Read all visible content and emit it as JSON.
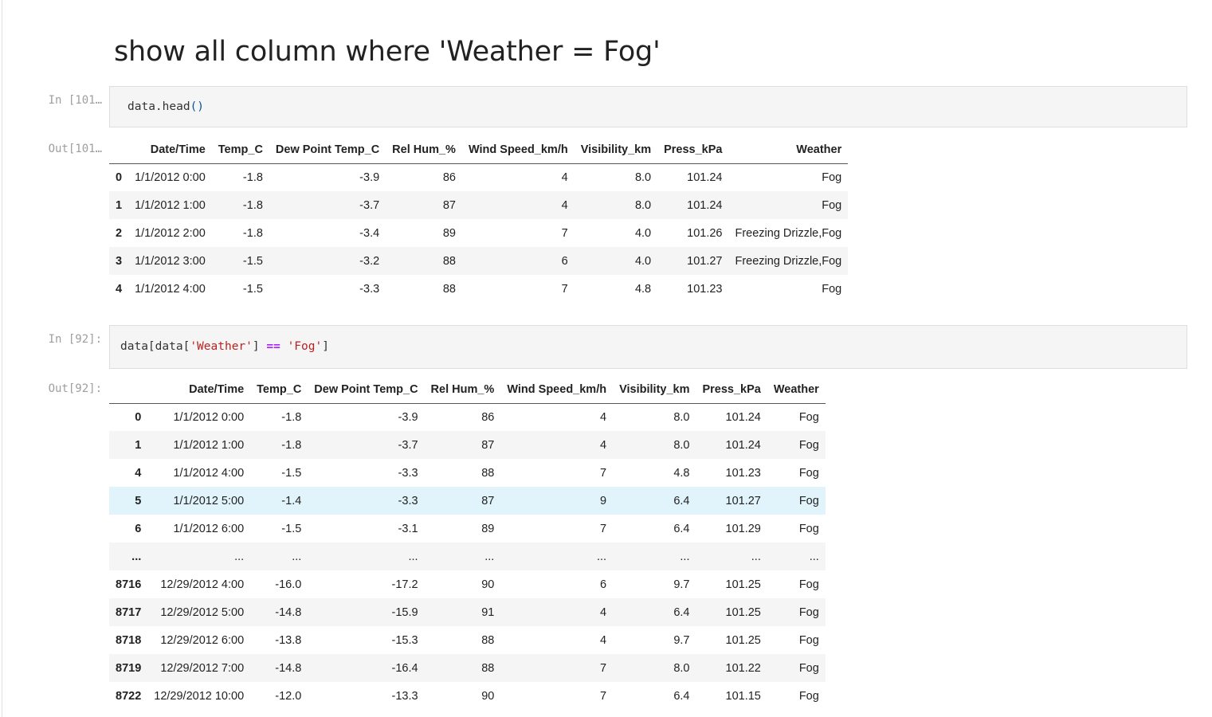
{
  "heading": "show all column where 'Weather = Fog'",
  "cell1": {
    "in_prompt": "In [101…",
    "out_prompt": "Out[101…",
    "code": {
      "obj": "data",
      "method": ".head",
      "args": "()"
    },
    "table": {
      "columns": [
        "",
        "Date/Time",
        "Temp_C",
        "Dew Point Temp_C",
        "Rel Hum_%",
        "Wind Speed_km/h",
        "Visibility_km",
        "Press_kPa",
        "Weather"
      ],
      "rows": [
        [
          "0",
          "1/1/2012 0:00",
          "-1.8",
          "-3.9",
          "86",
          "4",
          "8.0",
          "101.24",
          "Fog"
        ],
        [
          "1",
          "1/1/2012 1:00",
          "-1.8",
          "-3.7",
          "87",
          "4",
          "8.0",
          "101.24",
          "Fog"
        ],
        [
          "2",
          "1/1/2012 2:00",
          "-1.8",
          "-3.4",
          "89",
          "7",
          "4.0",
          "101.26",
          "Freezing Drizzle,Fog"
        ],
        [
          "3",
          "1/1/2012 3:00",
          "-1.5",
          "-3.2",
          "88",
          "6",
          "4.0",
          "101.27",
          "Freezing Drizzle,Fog"
        ],
        [
          "4",
          "1/1/2012 4:00",
          "-1.5",
          "-3.3",
          "88",
          "7",
          "4.8",
          "101.23",
          "Fog"
        ]
      ]
    }
  },
  "cell2": {
    "in_prompt": "In [92]:",
    "out_prompt": "Out[92]:",
    "code": {
      "p1": "data[data[",
      "s1": "'Weather'",
      "p2": "] ",
      "op": "==",
      "sp": " ",
      "s2": "'Fog'",
      "p3": "]"
    },
    "table": {
      "columns": [
        "",
        "Date/Time",
        "Temp_C",
        "Dew Point Temp_C",
        "Rel Hum_%",
        "Wind Speed_km/h",
        "Visibility_km",
        "Press_kPa",
        "Weather"
      ],
      "rows": [
        [
          "0",
          "1/1/2012 0:00",
          "-1.8",
          "-3.9",
          "86",
          "4",
          "8.0",
          "101.24",
          "Fog"
        ],
        [
          "1",
          "1/1/2012 1:00",
          "-1.8",
          "-3.7",
          "87",
          "4",
          "8.0",
          "101.24",
          "Fog"
        ],
        [
          "4",
          "1/1/2012 4:00",
          "-1.5",
          "-3.3",
          "88",
          "7",
          "4.8",
          "101.23",
          "Fog"
        ],
        [
          "5",
          "1/1/2012 5:00",
          "-1.4",
          "-3.3",
          "87",
          "9",
          "6.4",
          "101.27",
          "Fog"
        ],
        [
          "6",
          "1/1/2012 6:00",
          "-1.5",
          "-3.1",
          "89",
          "7",
          "6.4",
          "101.29",
          "Fog"
        ],
        [
          "...",
          "...",
          "...",
          "...",
          "...",
          "...",
          "...",
          "...",
          "..."
        ],
        [
          "8716",
          "12/29/2012 4:00",
          "-16.0",
          "-17.2",
          "90",
          "6",
          "9.7",
          "101.25",
          "Fog"
        ],
        [
          "8717",
          "12/29/2012 5:00",
          "-14.8",
          "-15.9",
          "91",
          "4",
          "6.4",
          "101.25",
          "Fog"
        ],
        [
          "8718",
          "12/29/2012 6:00",
          "-13.8",
          "-15.3",
          "88",
          "4",
          "9.7",
          "101.25",
          "Fog"
        ],
        [
          "8719",
          "12/29/2012 7:00",
          "-14.8",
          "-16.4",
          "88",
          "7",
          "8.0",
          "101.22",
          "Fog"
        ],
        [
          "8722",
          "12/29/2012 10:00",
          "-12.0",
          "-13.3",
          "90",
          "7",
          "6.4",
          "101.15",
          "Fog"
        ]
      ],
      "hovered_row": 3
    }
  }
}
